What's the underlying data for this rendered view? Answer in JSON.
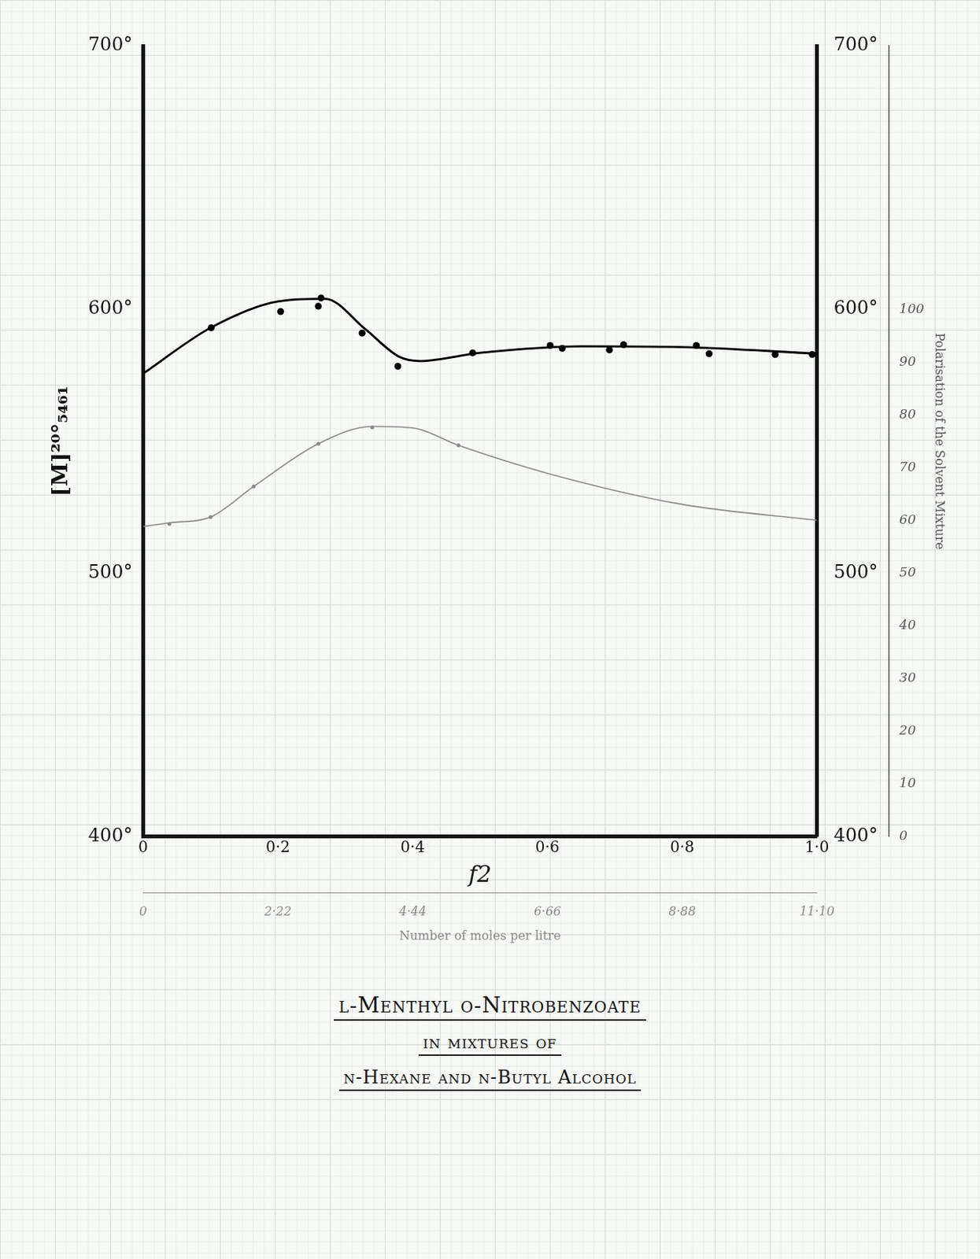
{
  "chart_data": {
    "type": "line",
    "title": "l-Menthyl o-Nitrobenzoate",
    "subtitle": [
      "in mixtures of",
      "n-Hexane and n-Butyl Alcohol"
    ],
    "xlabel": "f2",
    "x2label": "Number of moles per litre",
    "ylabel": "[M]²⁰°₅₄₆₁",
    "y2label": "Polarisation of the Solvent Mixture",
    "xlim": [
      0,
      1.0
    ],
    "xticks": [
      0,
      {
        "value": 0.2,
        "label": "0·2"
      },
      {
        "value": 0.4,
        "label": "0·4"
      },
      {
        "value": 0.6,
        "label": "0·6"
      },
      {
        "value": 0.8,
        "label": "0·8"
      },
      {
        "value": 1.0,
        "label": "1·0"
      }
    ],
    "x2lim": [
      0,
      11.1
    ],
    "x2ticks": [
      0,
      {
        "value": 2.22,
        "label": "2·22"
      },
      {
        "value": 4.44,
        "label": "4·44"
      },
      {
        "value": 6.66,
        "label": "6·66"
      },
      {
        "value": 8.88,
        "label": "8·88"
      },
      {
        "value": 11.1,
        "label": "11·10"
      }
    ],
    "ylim": [
      400,
      700
    ],
    "yticks": [
      {
        "value": 400,
        "label": "400°"
      },
      {
        "value": 500,
        "label": "500°"
      },
      {
        "value": 600,
        "label": "600°"
      },
      {
        "value": 700,
        "label": "700°"
      }
    ],
    "y2lim": [
      0,
      150
    ],
    "y2ticks": [
      0,
      10,
      20,
      30,
      40,
      50,
      60,
      70,
      80,
      90,
      100
    ],
    "grid": false,
    "series": [
      {
        "type": "line",
        "color": "#000000",
        "marker": "none",
        "line_style": "solid",
        "x": [
          0,
          0.1,
          0.2,
          0.27,
          0.33,
          0.38,
          0.41,
          0.5,
          0.65,
          0.8,
          1.0
        ],
        "values": [
          575.6,
          593,
          603,
          604,
          592.4,
          582,
          580.4,
          583.5,
          586,
          585.7,
          583.2
        ]
      },
      {
        "type": "scatter",
        "color": "#000000",
        "marker": "circle",
        "x": [
          0.101,
          0.204,
          0.26,
          0.264,
          0.325,
          0.378,
          0.489,
          0.604,
          0.622,
          0.692,
          0.713,
          0.821,
          0.84,
          0.938,
          0.993
        ],
        "values": [
          593,
          599.2,
          601.2,
          604.3,
          591,
          578.4,
          583.5,
          586.3,
          585.2,
          584.6,
          586.6,
          586.3,
          583.2,
          582.9,
          582.9
        ]
      },
      {
        "type": "line",
        "color": "#8a8a8a",
        "marker": "none",
        "line_style": "solid",
        "axis": "y2",
        "x": [
          0,
          0.039,
          0.1,
          0.164,
          0.26,
          0.34,
          0.4,
          0.468,
          0.6,
          0.8,
          1.0
        ],
        "values": [
          58.8,
          59.5,
          60.6,
          66.4,
          74.5,
          77.8,
          77.5,
          74.2,
          68.9,
          63,
          60
        ]
      },
      {
        "type": "scatter",
        "color": "#8a8a8a",
        "marker": "circle",
        "axis": "y2",
        "x": [
          0.039,
          0.1,
          0.164,
          0.26,
          0.34,
          0.468
        ],
        "values": [
          59.3,
          60.6,
          66.4,
          74.5,
          77.6,
          74.2
        ]
      }
    ]
  }
}
